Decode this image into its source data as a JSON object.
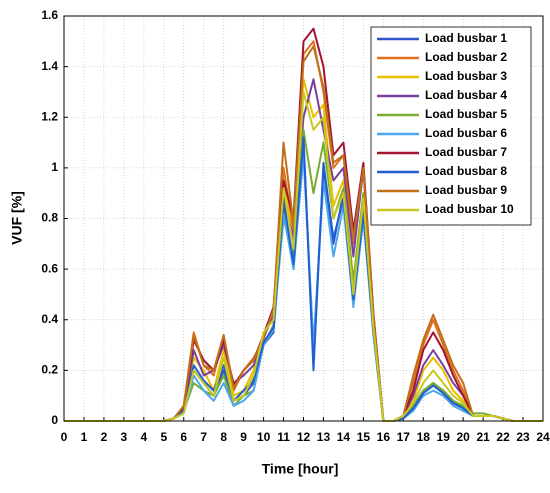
{
  "chart_data": {
    "type": "line",
    "xlabel": "Time [hour]",
    "ylabel": "VUF [%]",
    "x": [
      0,
      0.5,
      1,
      1.5,
      2,
      2.5,
      3,
      3.5,
      4,
      4.5,
      5,
      5.5,
      6,
      6.5,
      7,
      7.5,
      8,
      8.5,
      9,
      9.5,
      10,
      10.5,
      11,
      11.5,
      12,
      12.5,
      13,
      13.5,
      14,
      14.5,
      15,
      15.5,
      16,
      16.5,
      17,
      17.5,
      18,
      18.5,
      19,
      19.5,
      20,
      20.5,
      21,
      21.5,
      22,
      22.5,
      23,
      23.5,
      24
    ],
    "xlim": [
      0,
      24
    ],
    "xticks": [
      0,
      1,
      2,
      3,
      4,
      5,
      6,
      7,
      8,
      9,
      10,
      11,
      12,
      13,
      14,
      15,
      16,
      17,
      18,
      19,
      20,
      21,
      22,
      23,
      24
    ],
    "ylim": [
      0,
      1.6
    ],
    "yticks": [
      0,
      0.2,
      0.4,
      0.6,
      0.8,
      1,
      1.2,
      1.4,
      1.6
    ],
    "grid": true,
    "legend": "upper right",
    "series": [
      {
        "name": "Load busbar 1",
        "color": "#3355cc",
        "values": [
          0,
          0,
          0,
          0,
          0,
          0,
          0,
          0,
          0,
          0,
          0,
          0.01,
          0.04,
          0.2,
          0.15,
          0.1,
          0.2,
          0.08,
          0.1,
          0.15,
          0.3,
          0.35,
          0.85,
          0.6,
          1.1,
          0.25,
          1.0,
          0.7,
          0.9,
          0.5,
          0.85,
          0.35,
          0,
          0,
          0.01,
          0.05,
          0.12,
          0.15,
          0.12,
          0.08,
          0.05,
          0.02,
          0.02,
          0.02,
          0.01,
          0,
          0,
          0,
          0
        ]
      },
      {
        "name": "Load busbar 2",
        "color": "#e0701c",
        "values": [
          0,
          0,
          0,
          0,
          0,
          0,
          0,
          0,
          0,
          0,
          0,
          0.01,
          0.06,
          0.35,
          0.22,
          0.18,
          0.33,
          0.12,
          0.2,
          0.25,
          0.32,
          0.45,
          1.0,
          0.75,
          1.45,
          1.5,
          1.3,
          1.0,
          1.05,
          0.7,
          1.0,
          0.42,
          0,
          0,
          0.02,
          0.15,
          0.3,
          0.4,
          0.3,
          0.2,
          0.12,
          0.02,
          0.02,
          0.02,
          0.01,
          0,
          0,
          0,
          0
        ]
      },
      {
        "name": "Load busbar 3",
        "color": "#e8c000",
        "values": [
          0,
          0,
          0,
          0,
          0,
          0,
          0,
          0,
          0,
          0,
          0,
          0.01,
          0.03,
          0.25,
          0.2,
          0.12,
          0.28,
          0.1,
          0.12,
          0.2,
          0.35,
          0.4,
          0.95,
          0.7,
          1.35,
          1.2,
          1.25,
          0.85,
          0.95,
          0.55,
          0.9,
          0.38,
          0,
          0,
          0.02,
          0.08,
          0.2,
          0.25,
          0.2,
          0.12,
          0.08,
          0.02,
          0.02,
          0.02,
          0.01,
          0,
          0,
          0,
          0
        ]
      },
      {
        "name": "Load busbar 4",
        "color": "#7b3fa0",
        "values": [
          0,
          0,
          0,
          0,
          0,
          0,
          0,
          0,
          0,
          0,
          0,
          0.01,
          0.05,
          0.28,
          0.18,
          0.2,
          0.3,
          0.15,
          0.18,
          0.22,
          0.33,
          0.42,
          0.88,
          0.72,
          1.2,
          1.35,
          1.15,
          0.95,
          1.0,
          0.65,
          1.0,
          0.4,
          0,
          0,
          0.02,
          0.1,
          0.22,
          0.28,
          0.22,
          0.15,
          0.1,
          0.02,
          0.02,
          0.02,
          0.01,
          0,
          0,
          0,
          0
        ]
      },
      {
        "name": "Load busbar 5",
        "color": "#77ac30",
        "values": [
          0,
          0,
          0,
          0,
          0,
          0,
          0,
          0,
          0,
          0,
          0,
          0.01,
          0.04,
          0.15,
          0.12,
          0.1,
          0.18,
          0.06,
          0.1,
          0.12,
          0.3,
          0.38,
          0.8,
          0.65,
          1.15,
          0.9,
          1.1,
          0.8,
          0.92,
          0.55,
          0.9,
          0.36,
          0,
          0,
          0.02,
          0.06,
          0.12,
          0.15,
          0.12,
          0.08,
          0.06,
          0.03,
          0.03,
          0.02,
          0.01,
          0,
          0,
          0,
          0
        ]
      },
      {
        "name": "Load busbar 6",
        "color": "#4da6ee",
        "values": [
          0,
          0,
          0,
          0,
          0,
          0,
          0,
          0,
          0,
          0,
          0,
          0.01,
          0.03,
          0.18,
          0.12,
          0.08,
          0.15,
          0.06,
          0.08,
          0.12,
          0.3,
          0.36,
          0.82,
          0.6,
          1.05,
          0.3,
          0.95,
          0.65,
          0.85,
          0.45,
          0.8,
          0.34,
          0,
          0,
          0.01,
          0.04,
          0.1,
          0.12,
          0.1,
          0.06,
          0.04,
          0.02,
          0.02,
          0.02,
          0.01,
          0,
          0,
          0,
          0
        ]
      },
      {
        "name": "Load busbar 7",
        "color": "#a2142f",
        "values": [
          0,
          0,
          0,
          0,
          0,
          0,
          0,
          0,
          0,
          0,
          0,
          0.01,
          0.05,
          0.32,
          0.24,
          0.2,
          0.32,
          0.14,
          0.2,
          0.24,
          0.34,
          0.45,
          0.95,
          0.8,
          1.5,
          1.55,
          1.4,
          1.05,
          1.1,
          0.75,
          1.02,
          0.43,
          0,
          0,
          0.02,
          0.12,
          0.28,
          0.35,
          0.28,
          0.18,
          0.1,
          0.02,
          0.02,
          0.02,
          0.01,
          0,
          0,
          0,
          0
        ]
      },
      {
        "name": "Load busbar 8",
        "color": "#1f5fd0",
        "values": [
          0,
          0,
          0,
          0,
          0,
          0,
          0,
          0,
          0,
          0,
          0,
          0.01,
          0.04,
          0.22,
          0.16,
          0.12,
          0.22,
          0.08,
          0.12,
          0.16,
          0.31,
          0.37,
          0.87,
          0.62,
          1.12,
          0.2,
          1.02,
          0.72,
          0.88,
          0.48,
          0.82,
          0.36,
          0,
          0,
          0.01,
          0.05,
          0.11,
          0.14,
          0.11,
          0.07,
          0.05,
          0.02,
          0.02,
          0.02,
          0.01,
          0,
          0,
          0,
          0
        ]
      },
      {
        "name": "Load busbar 9",
        "color": "#c0701a",
        "values": [
          0,
          0,
          0,
          0,
          0,
          0,
          0,
          0,
          0,
          0,
          0,
          0.01,
          0.06,
          0.34,
          0.22,
          0.2,
          0.34,
          0.13,
          0.2,
          0.24,
          0.33,
          0.44,
          1.1,
          0.78,
          1.42,
          1.48,
          1.32,
          1.02,
          1.05,
          0.72,
          1.0,
          0.42,
          0,
          0,
          0.02,
          0.18,
          0.32,
          0.42,
          0.32,
          0.22,
          0.15,
          0.02,
          0.02,
          0.02,
          0.01,
          0,
          0,
          0,
          0
        ]
      },
      {
        "name": "Load busbar 10",
        "color": "#c8c820",
        "values": [
          0,
          0,
          0,
          0,
          0,
          0,
          0,
          0,
          0,
          0,
          0,
          0.01,
          0.03,
          0.2,
          0.15,
          0.1,
          0.25,
          0.08,
          0.1,
          0.18,
          0.35,
          0.4,
          0.92,
          0.68,
          1.3,
          1.15,
          1.2,
          0.8,
          0.9,
          0.5,
          0.88,
          0.37,
          0,
          0,
          0.02,
          0.07,
          0.15,
          0.2,
          0.15,
          0.1,
          0.07,
          0.02,
          0.02,
          0.02,
          0.01,
          0,
          0,
          0,
          0
        ]
      }
    ]
  }
}
